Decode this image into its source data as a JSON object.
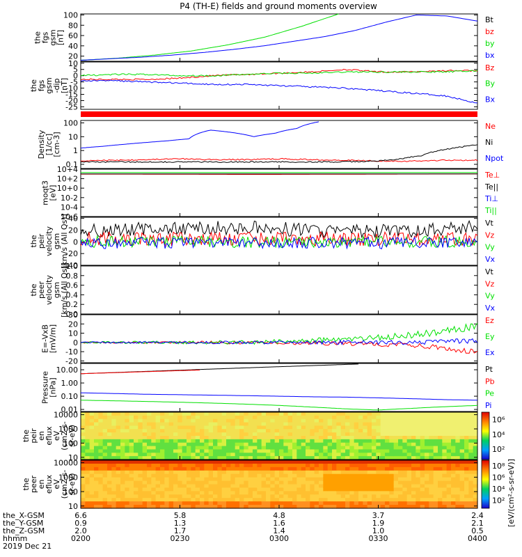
{
  "title": "P4 (TH-E) fields and ground moments overview",
  "colors": {
    "black": "#000000",
    "red": "#ff0000",
    "green": "#00e000",
    "blue": "#0000ff"
  },
  "ephemeris": {
    "rows": [
      {
        "label": "the_X-GSM",
        "values": [
          "6.6",
          "5.8",
          "4.8",
          "3.7",
          "2.4"
        ]
      },
      {
        "label": "the_Y-GSM",
        "values": [
          "0.9",
          "1.3",
          "1.6",
          "1.9",
          "2.1"
        ]
      },
      {
        "label": "the_Z-GSM",
        "values": [
          "2.0",
          "1.7",
          "1.4",
          "1.0",
          "0.5"
        ]
      },
      {
        "label": "hhmm",
        "values": [
          "0200",
          "0230",
          "0300",
          "0330",
          "0400"
        ]
      }
    ],
    "date": "2019 Dec 21"
  },
  "chart_data": [
    {
      "type": "line",
      "ylabel": [
        "the",
        "fgs",
        "gsm",
        "[nT]"
      ],
      "ticks": [
        "20",
        "40",
        "60",
        "80",
        "100"
      ],
      "ylim": [
        10,
        102
      ],
      "series": [
        {
          "name": "Bt",
          "color": "#000000",
          "values": []
        },
        {
          "name": "bz",
          "color": "#ff0000",
          "values": []
        },
        {
          "name": "by",
          "color": "#00e000",
          "values": [
            12,
            16,
            22,
            30,
            42,
            57,
            78,
            102
          ]
        },
        {
          "name": "bx",
          "color": "#0000ff",
          "values": [
            12,
            15,
            18,
            22,
            27,
            33,
            40,
            49,
            58,
            70,
            86,
            100,
            98,
            88
          ]
        }
      ]
    },
    {
      "type": "line",
      "ylabel": [
        "the",
        "fgs",
        "gsm",
        "-dip",
        "[nT]"
      ],
      "ticks": [
        "-25",
        "-20",
        "-15",
        "-10",
        "-5",
        "0",
        "5",
        "10"
      ],
      "ylim": [
        -27,
        11
      ],
      "series": [
        {
          "name": "Bz",
          "color": "#ff0000",
          "values": [
            -3,
            -3,
            -3,
            -2,
            0,
            1,
            2,
            3,
            5,
            3,
            3,
            4,
            4
          ]
        },
        {
          "name": "By",
          "color": "#00e000",
          "values": [
            0,
            1,
            1,
            0,
            0,
            1,
            2,
            2,
            3,
            3,
            3,
            3,
            4
          ]
        },
        {
          "name": "Bx",
          "color": "#0000ff",
          "values": [
            -4,
            -4,
            -5,
            -6,
            -7,
            -7,
            -8,
            -9,
            -10,
            -12,
            -14,
            -16,
            -22
          ]
        }
      ]
    },
    {
      "type": "line",
      "ylabel": [
        "Density",
        "[1/cc]",
        "[cm-3]"
      ],
      "ticks": [
        "0.1",
        "1",
        "10",
        "100"
      ],
      "ylim": [
        0.05,
        150
      ],
      "log": true,
      "series": [
        {
          "name": "Ne",
          "color": "#ff0000",
          "values": [
            0.18,
            0.2,
            0.22,
            0.25,
            0.22,
            0.22,
            0.25,
            0.22,
            0.2,
            0.18,
            0.17,
            0.2,
            0.2
          ]
        },
        {
          "name": "Ni",
          "color": "#000000",
          "values": [
            0.15,
            0.15,
            0.15,
            0.15,
            0.15,
            0.15,
            0.15,
            0.15,
            0.15,
            0.15,
            0.16,
            0.2,
            0.4,
            1.3,
            2.5
          ]
        },
        {
          "name": "Npot",
          "color": "#0000ff",
          "values": [
            1.5,
            2,
            2.8,
            3.8,
            5,
            7,
            30,
            20,
            10,
            18,
            40,
            120
          ]
        }
      ]
    },
    {
      "type": "line",
      "ylabel": [
        "moqt3",
        "[eV]"
      ],
      "ticks": [
        "10-6",
        "10-4",
        "10-2",
        "10+0",
        "10+2",
        "10+4"
      ],
      "ylim": [
        1e-06,
        10000
      ],
      "log": true,
      "series": [
        {
          "name": "Te⊥",
          "color": "#ff0000",
          "values": [
            900,
            900,
            850,
            800,
            800,
            850,
            900,
            950,
            1000
          ]
        },
        {
          "name": "Te||",
          "color": "#000000",
          "values": [
            1000,
            1000,
            1000,
            1000,
            1000,
            1000,
            1000,
            1000,
            1000
          ]
        },
        {
          "name": "Ti⊥",
          "color": "#0000ff",
          "values": []
        },
        {
          "name": "Ti||",
          "color": "#00e000",
          "values": [
            2000,
            2000,
            2000,
            2000,
            2000,
            2000,
            2000,
            2000,
            2000
          ]
        }
      ]
    },
    {
      "type": "line",
      "ylabel": [
        "the",
        "peir",
        "velocity",
        "gsm",
        "[km/s (All Qs)]"
      ],
      "ticks": [
        "-40",
        "-20",
        "0",
        "20",
        "40"
      ],
      "ylim": [
        -40,
        42
      ],
      "series": [
        {
          "name": "Vt",
          "color": "#000000",
          "values": [
            20,
            20,
            22,
            22,
            24,
            24,
            22,
            20,
            18,
            18,
            18,
            22,
            26
          ]
        },
        {
          "name": "Vz",
          "color": "#ff0000",
          "values": [
            5,
            5,
            5,
            5,
            5,
            5,
            5,
            5,
            5,
            5,
            5,
            5,
            5
          ]
        },
        {
          "name": "Vy",
          "color": "#00e000",
          "values": [
            0,
            0,
            0,
            0,
            0,
            0,
            0,
            0,
            0,
            0,
            0,
            0,
            0
          ]
        },
        {
          "name": "Vx",
          "color": "#0000ff",
          "values": [
            -2,
            -2,
            -2,
            -2,
            -2,
            -2,
            -2,
            -2,
            -2,
            -2,
            -2,
            -2,
            -2
          ]
        }
      ]
    },
    {
      "type": "line",
      "ylabel": [
        "the",
        "peer",
        "velocity",
        "gsm",
        "[km/s (All Qs)]"
      ],
      "ticks": [
        "0.0",
        "0.2",
        "0.4",
        "0.6",
        "0.8",
        "1.0"
      ],
      "ylim": [
        0,
        1
      ],
      "series": [
        {
          "name": "Vt",
          "color": "#000000",
          "values": []
        },
        {
          "name": "Vz",
          "color": "#ff0000",
          "values": []
        },
        {
          "name": "Vy",
          "color": "#00e000",
          "values": []
        },
        {
          "name": "Vx",
          "color": "#0000ff",
          "values": []
        }
      ]
    },
    {
      "type": "line",
      "ylabel": [
        "E=-VxB",
        "[mV/m]"
      ],
      "ticks": [
        "-20",
        "-10",
        "0",
        "10",
        "20",
        "30"
      ],
      "ylim": [
        -22,
        30
      ],
      "series": [
        {
          "name": "Ez",
          "color": "#ff0000",
          "values": [
            0,
            0,
            0,
            0,
            0,
            0,
            0,
            -1,
            -1,
            -2,
            -3,
            -6,
            -11
          ]
        },
        {
          "name": "Ey",
          "color": "#00e000",
          "values": [
            0,
            0,
            0,
            0,
            0,
            0,
            1,
            2,
            3,
            5,
            8,
            12,
            18
          ]
        },
        {
          "name": "Ex",
          "color": "#0000ff",
          "values": [
            0,
            0,
            0,
            0,
            0,
            0,
            0,
            0,
            0,
            0,
            0,
            1,
            1
          ]
        }
      ]
    },
    {
      "type": "line",
      "ylabel": [
        "Pressure",
        "[nPa]"
      ],
      "ticks": [
        "0.01",
        "0.10",
        "1.00",
        "10.00"
      ],
      "ylim": [
        0.007,
        30
      ],
      "log": true,
      "series": [
        {
          "name": "Pt",
          "color": "#000000",
          "values": [
            5,
            6.2,
            7.7,
            9.5,
            11.8,
            14.6,
            18,
            22,
            27
          ]
        },
        {
          "name": "Pb",
          "color": "#ff0000",
          "values": [
            5,
            6.2,
            7.7,
            9.5
          ]
        },
        {
          "name": "Pe",
          "color": "#00e000",
          "values": [
            0.05,
            0.045,
            0.04,
            0.035,
            0.03,
            0.025,
            0.02,
            0.015,
            0.011,
            0.009,
            0.012,
            0.016,
            0.02
          ]
        },
        {
          "name": "Pi",
          "color": "#0000ff",
          "values": [
            0.18,
            0.16,
            0.14,
            0.13,
            0.12,
            0.11,
            0.1,
            0.09,
            0.085,
            0.075,
            0.065,
            0.055,
            0.05
          ]
        }
      ]
    },
    {
      "type": "heatmap",
      "ylabel": [
        "the",
        "peir",
        "en",
        "eflux",
        "eV",
        "(cm2-s-",
        "sr-eV)"
      ],
      "ticks": [
        "10",
        "100",
        "1000",
        "10000"
      ],
      "ylim": [
        7,
        15000
      ],
      "log": true,
      "colorbar": {
        "ticks": [
          "10²",
          "10⁴",
          "10⁶"
        ],
        "label": "[eV/(cm²-s-sr-eV)]"
      }
    },
    {
      "type": "heatmap",
      "ylabel": [
        "the",
        "peer",
        "en",
        "eflux",
        "eV",
        "(cm2-s-",
        "sr-eV)"
      ],
      "ticks": [
        "10",
        "100",
        "1000",
        "10000"
      ],
      "ylim": [
        7,
        15000
      ],
      "log": true,
      "colorbar": {
        "ticks": [
          "10²",
          "10⁴",
          "10⁶",
          "10⁸"
        ],
        "label": "[eV/(cm²-s-sr-eV)]"
      }
    }
  ]
}
